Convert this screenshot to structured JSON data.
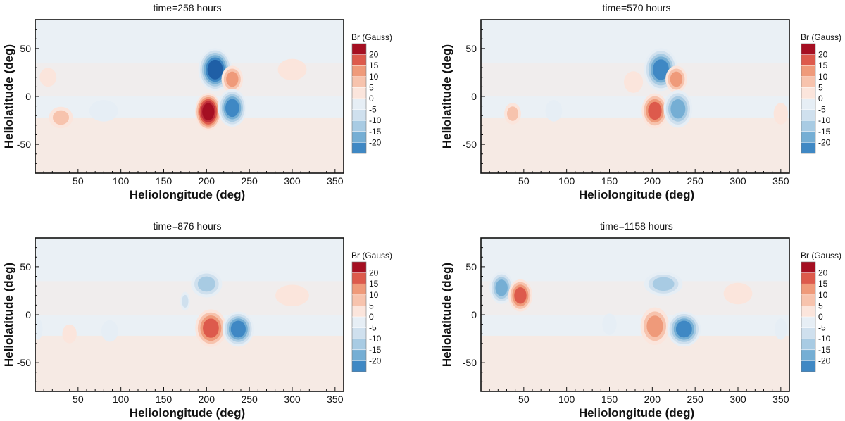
{
  "chart_data": [
    {
      "type": "heatmap",
      "title": "time=258 hours",
      "xlabel": "Heliolongitude (deg)",
      "ylabel": "Heliolatitude (deg)",
      "xlim": [
        0,
        360
      ],
      "ylim": [
        -80,
        80
      ],
      "xticks": [
        "50",
        "100",
        "150",
        "200",
        "250",
        "300",
        "350"
      ],
      "xtick_values": [
        50,
        100,
        150,
        200,
        250,
        300,
        350
      ],
      "yticks": [
        "50",
        "0",
        "-50"
      ],
      "ytick_values": [
        50,
        0,
        -50
      ],
      "colorbar": {
        "title": "Br (Gauss)",
        "levels": [
          "20",
          "15",
          "10",
          "5",
          "0",
          "-5",
          "-10",
          "-15",
          "-20"
        ]
      },
      "blobs": [
        {
          "lon": 210,
          "lat": 28,
          "peak": -22,
          "rx": 14,
          "ry": 16
        },
        {
          "lon": 230,
          "lat": 18,
          "peak": 12,
          "rx": 9,
          "ry": 10
        },
        {
          "lon": 202,
          "lat": -16,
          "peak": 22,
          "rx": 11,
          "ry": 14
        },
        {
          "lon": 230,
          "lat": -12,
          "peak": -18,
          "rx": 12,
          "ry": 14
        },
        {
          "lon": 15,
          "lat": 20,
          "peak": 4,
          "rx": 7,
          "ry": 7
        },
        {
          "lon": 30,
          "lat": -22,
          "peak": 5,
          "rx": 10,
          "ry": 8
        },
        {
          "lon": 80,
          "lat": -15,
          "peak": -3,
          "rx": 12,
          "ry": 8
        },
        {
          "lon": 300,
          "lat": 28,
          "peak": 3,
          "rx": 12,
          "ry": 8
        }
      ]
    },
    {
      "type": "heatmap",
      "title": "time=570 hours",
      "xlabel": "Heliolongitude (deg)",
      "ylabel": "Heliolatitude (deg)",
      "xlim": [
        0,
        360
      ],
      "ylim": [
        -80,
        80
      ],
      "xticks": [
        "50",
        "100",
        "150",
        "200",
        "250",
        "300",
        "350"
      ],
      "xtick_values": [
        50,
        100,
        150,
        200,
        250,
        300,
        350
      ],
      "yticks": [
        "50",
        "0",
        "-50"
      ],
      "ytick_values": [
        50,
        0,
        -50
      ],
      "colorbar": {
        "title": "Br (Gauss)",
        "levels": [
          "20",
          "15",
          "10",
          "5",
          "0",
          "-5",
          "-10",
          "-15",
          "-20"
        ]
      },
      "blobs": [
        {
          "lon": 210,
          "lat": 28,
          "peak": -18,
          "rx": 14,
          "ry": 16
        },
        {
          "lon": 228,
          "lat": 18,
          "peak": 10,
          "rx": 9,
          "ry": 10
        },
        {
          "lon": 203,
          "lat": -15,
          "peak": 16,
          "rx": 11,
          "ry": 13
        },
        {
          "lon": 230,
          "lat": -13,
          "peak": -16,
          "rx": 12,
          "ry": 14
        },
        {
          "lon": 178,
          "lat": 15,
          "peak": 4,
          "rx": 8,
          "ry": 8
        },
        {
          "lon": 37,
          "lat": -18,
          "peak": 6,
          "rx": 7,
          "ry": 8
        },
        {
          "lon": 85,
          "lat": -15,
          "peak": -3,
          "rx": 7,
          "ry": 8
        },
        {
          "lon": 350,
          "lat": -18,
          "peak": 4,
          "rx": 6,
          "ry": 8
        }
      ]
    },
    {
      "type": "heatmap",
      "title": "time=876 hours",
      "xlabel": "Heliolongitude (deg)",
      "ylabel": "Heliolatitude (deg)",
      "xlim": [
        0,
        360
      ],
      "ylim": [
        -80,
        80
      ],
      "xticks": [
        "50",
        "100",
        "150",
        "200",
        "250",
        "300",
        "350"
      ],
      "xtick_values": [
        50,
        100,
        150,
        200,
        250,
        300,
        350
      ],
      "yticks": [
        "50",
        "0",
        "-50"
      ],
      "ytick_values": [
        50,
        0,
        -50
      ],
      "colorbar": {
        "title": "Br (Gauss)",
        "levels": [
          "20",
          "15",
          "10",
          "5",
          "0",
          "-5",
          "-10",
          "-15",
          "-20"
        ]
      },
      "blobs": [
        {
          "lon": 200,
          "lat": 32,
          "peak": -12,
          "rx": 13,
          "ry": 10
        },
        {
          "lon": 175,
          "lat": 14,
          "peak": -6,
          "rx": 4,
          "ry": 7
        },
        {
          "lon": 205,
          "lat": -14,
          "peak": 16,
          "rx": 13,
          "ry": 14
        },
        {
          "lon": 237,
          "lat": -15,
          "peak": -18,
          "rx": 13,
          "ry": 13
        },
        {
          "lon": 300,
          "lat": 20,
          "peak": 4,
          "rx": 14,
          "ry": 8
        },
        {
          "lon": 40,
          "lat": -20,
          "peak": 4,
          "rx": 6,
          "ry": 7
        },
        {
          "lon": 87,
          "lat": -17,
          "peak": -4,
          "rx": 7,
          "ry": 8
        },
        {
          "lon": 3,
          "lat": -15,
          "peak": -4,
          "rx": 4,
          "ry": 8
        }
      ]
    },
    {
      "type": "heatmap",
      "title": "time=1158 hours",
      "xlabel": "Heliolongitude (deg)",
      "ylabel": "Heliolatitude (deg)",
      "xlim": [
        0,
        360
      ],
      "ylim": [
        -80,
        80
      ],
      "xticks": [
        "50",
        "100",
        "150",
        "200",
        "250",
        "300",
        "350"
      ],
      "xtick_values": [
        50,
        100,
        150,
        200,
        250,
        300,
        350
      ],
      "yticks": [
        "50",
        "0",
        "-50"
      ],
      "ytick_values": [
        50,
        0,
        -50
      ],
      "colorbar": {
        "title": "Br (Gauss)",
        "levels": [
          "20",
          "15",
          "10",
          "5",
          "0",
          "-5",
          "-10",
          "-15",
          "-20"
        ]
      },
      "blobs": [
        {
          "lon": 24,
          "lat": 28,
          "peak": -14,
          "rx": 10,
          "ry": 12
        },
        {
          "lon": 46,
          "lat": 20,
          "peak": 14,
          "rx": 10,
          "ry": 12
        },
        {
          "lon": 213,
          "lat": 32,
          "peak": -9,
          "rx": 16,
          "ry": 9
        },
        {
          "lon": 203,
          "lat": -12,
          "peak": 10,
          "rx": 12,
          "ry": 14
        },
        {
          "lon": 237,
          "lat": -15,
          "peak": -17,
          "rx": 14,
          "ry": 13
        },
        {
          "lon": 300,
          "lat": 22,
          "peak": 4,
          "rx": 12,
          "ry": 8
        },
        {
          "lon": 150,
          "lat": -10,
          "peak": -4,
          "rx": 6,
          "ry": 8
        },
        {
          "lon": 350,
          "lat": -15,
          "peak": -4,
          "rx": 5,
          "ry": 8
        }
      ]
    }
  ],
  "colors": {
    "positive": [
      "#fbe5dc",
      "#f7c3ad",
      "#ef9a7a",
      "#dd5a4c",
      "#c0303a",
      "#a50f22"
    ],
    "negative": [
      "#e6eef5",
      "#cfe0ee",
      "#a8cbe3",
      "#75aed4",
      "#3f88c4",
      "#1f5fa6"
    ],
    "background": "#eaf0f5"
  }
}
